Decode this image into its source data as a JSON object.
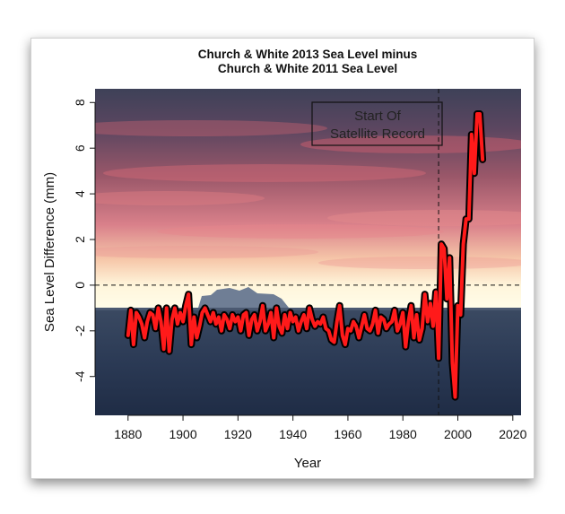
{
  "chart_data": {
    "type": "line",
    "title": "Church & White 2013 Sea Level minus",
    "subtitle": "Church & White 2011 Sea Level",
    "xlabel": "Year",
    "ylabel": "Sea Level Difference (mm)",
    "xlim": [
      1868,
      2023
    ],
    "ylim": [
      -5.7,
      8.6
    ],
    "x_ticks": [
      "1880",
      "1900",
      "1920",
      "1940",
      "1960",
      "1980",
      "2000",
      "2020"
    ],
    "y_ticks": [
      "-4",
      "-2",
      "0",
      "2",
      "4",
      "6",
      "8"
    ],
    "grid": false,
    "reference_lines": [
      {
        "orientation": "horizontal",
        "value": 0,
        "style": "dashed"
      },
      {
        "orientation": "vertical",
        "value": 1993,
        "style": "dashed"
      }
    ],
    "annotation": {
      "line1": "Start Of",
      "line2": "Satellite Record"
    },
    "series": [
      {
        "color": "#ff1a1a",
        "outline": "#000000",
        "x": [
          1880,
          1881,
          1882,
          1883,
          1884,
          1885,
          1886,
          1887,
          1888,
          1889,
          1890,
          1891,
          1892,
          1893,
          1894,
          1895,
          1896,
          1897,
          1898,
          1899,
          1900,
          1901,
          1902,
          1903,
          1904,
          1905,
          1906,
          1907,
          1908,
          1909,
          1910,
          1911,
          1912,
          1913,
          1914,
          1915,
          1916,
          1917,
          1918,
          1919,
          1920,
          1921,
          1922,
          1923,
          1924,
          1925,
          1926,
          1927,
          1928,
          1929,
          1930,
          1931,
          1932,
          1933,
          1934,
          1935,
          1936,
          1937,
          1938,
          1939,
          1940,
          1941,
          1942,
          1943,
          1944,
          1945,
          1946,
          1947,
          1948,
          1949,
          1950,
          1951,
          1952,
          1953,
          1954,
          1955,
          1956,
          1957,
          1958,
          1959,
          1960,
          1961,
          1962,
          1963,
          1964,
          1965,
          1966,
          1967,
          1968,
          1969,
          1970,
          1971,
          1972,
          1973,
          1974,
          1975,
          1976,
          1977,
          1978,
          1979,
          1980,
          1981,
          1982,
          1983,
          1984,
          1985,
          1986,
          1987,
          1988,
          1989,
          1990,
          1991,
          1992,
          1993,
          1994,
          1995,
          1996,
          1997,
          1998,
          1999,
          2000,
          2001,
          2002,
          2003,
          2004,
          2005,
          2006,
          2007,
          2008,
          2009
        ],
        "y": [
          -2.2,
          -1.1,
          -2.6,
          -1.2,
          -1.4,
          -1.7,
          -2.3,
          -1.6,
          -1.2,
          -1.3,
          -1.9,
          -1.0,
          -1.6,
          -2.8,
          -1.0,
          -2.9,
          -1.5,
          -1.0,
          -1.7,
          -1.2,
          -1.6,
          -0.9,
          -0.4,
          -2.6,
          -1.4,
          -2.3,
          -1.8,
          -1.2,
          -1.0,
          -1.3,
          -1.6,
          -1.2,
          -1.7,
          -1.4,
          -2.0,
          -1.3,
          -1.5,
          -1.9,
          -1.3,
          -1.6,
          -1.4,
          -2.0,
          -1.3,
          -1.2,
          -2.2,
          -1.5,
          -1.3,
          -2.0,
          -1.6,
          -0.9,
          -2.0,
          -1.7,
          -1.2,
          -2.3,
          -1.0,
          -1.8,
          -2.1,
          -1.3,
          -1.9,
          -1.2,
          -1.6,
          -1.4,
          -2.0,
          -1.6,
          -1.3,
          -1.9,
          -1.0,
          -1.5,
          -1.8,
          -1.6,
          -1.7,
          -1.4,
          -1.9,
          -2.0,
          -2.4,
          -2.5,
          -1.6,
          -0.9,
          -2.2,
          -2.6,
          -1.9,
          -2.0,
          -1.6,
          -1.8,
          -2.3,
          -1.8,
          -1.3,
          -1.9,
          -2.0,
          -1.7,
          -1.1,
          -2.1,
          -1.4,
          -1.5,
          -1.9,
          -1.7,
          -1.6,
          -1.1,
          -2.0,
          -1.7,
          -1.2,
          -2.7,
          -1.6,
          -0.9,
          -2.3,
          -1.3,
          -2.4,
          -1.9,
          -0.4,
          -1.6,
          -0.8,
          -1.8,
          -0.3,
          -3.2,
          1.8,
          1.6,
          -0.6,
          1.2,
          -3.4,
          -4.9,
          -0.9,
          -1.3,
          1.8,
          2.9,
          2.9,
          6.6,
          4.9,
          7.5,
          7.5,
          5.5
        ]
      }
    ]
  }
}
